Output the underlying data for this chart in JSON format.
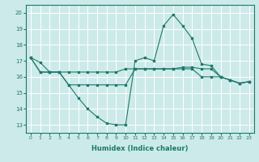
{
  "xlabel": "Humidex (Indice chaleur)",
  "ylabel": "",
  "background_color": "#cdeaea",
  "grid_color": "#ffffff",
  "line_color": "#1a7a6a",
  "xlim": [
    -0.5,
    23.5
  ],
  "ylim": [
    12.5,
    20.5
  ],
  "yticks": [
    13,
    14,
    15,
    16,
    17,
    18,
    19,
    20
  ],
  "xticks": [
    0,
    1,
    2,
    3,
    4,
    5,
    6,
    7,
    8,
    9,
    10,
    11,
    12,
    13,
    14,
    15,
    16,
    17,
    18,
    19,
    20,
    21,
    22,
    23
  ],
  "series": [
    [
      17.2,
      16.9,
      16.3,
      16.3,
      15.5,
      14.7,
      14.0,
      13.5,
      13.1,
      13.0,
      13.0,
      17.0,
      17.2,
      17.0,
      19.2,
      19.9,
      19.2,
      18.4,
      16.8,
      16.7,
      16.0,
      15.8,
      15.6,
      15.7
    ],
    [
      17.2,
      16.3,
      16.3,
      16.3,
      16.3,
      16.3,
      16.3,
      16.3,
      16.3,
      16.3,
      16.5,
      16.5,
      16.5,
      16.5,
      16.5,
      16.5,
      16.6,
      16.6,
      16.5,
      16.5,
      16.0,
      15.8,
      15.6,
      15.7
    ],
    [
      17.2,
      16.3,
      16.3,
      16.3,
      15.5,
      15.5,
      15.5,
      15.5,
      15.5,
      15.5,
      15.5,
      16.5,
      16.5,
      16.5,
      16.5,
      16.5,
      16.5,
      16.5,
      16.0,
      16.0,
      16.0,
      15.8,
      15.6,
      15.7
    ]
  ]
}
